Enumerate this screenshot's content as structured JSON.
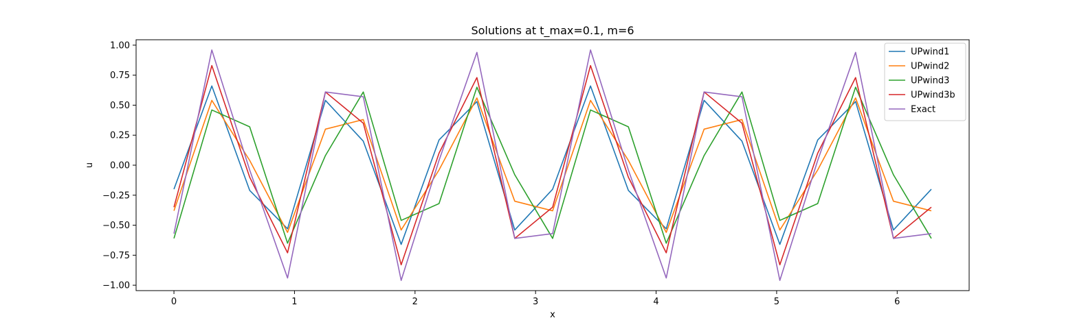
{
  "chart_data": {
    "type": "line",
    "title": "Solutions at t_max=0.1, m=6",
    "xlabel": "x",
    "ylabel": "u",
    "xlim": [
      -0.314,
      6.597
    ],
    "ylim": [
      -1.045,
      1.045
    ],
    "xticks": [
      0,
      1,
      2,
      3,
      4,
      5,
      6
    ],
    "xtick_labels": [
      "0",
      "1",
      "2",
      "3",
      "4",
      "5",
      "6"
    ],
    "yticks": [
      1.0,
      0.75,
      0.5,
      0.25,
      0.0,
      -0.25,
      -0.5,
      -0.75,
      -1.0
    ],
    "ytick_labels": [
      "1.00",
      "0.75",
      "0.50",
      "0.25",
      "0.00",
      "−0.25",
      "−0.50",
      "−0.75",
      "−1.00"
    ],
    "grid": false,
    "legend_position": "top-right",
    "x": [
      0,
      0.3142,
      0.6283,
      0.9425,
      1.2566,
      1.5708,
      1.885,
      2.1991,
      2.5133,
      2.8274,
      3.1416,
      3.4558,
      3.7699,
      4.0841,
      4.3982,
      4.7124,
      5.0265,
      5.3407,
      5.6549,
      5.969,
      6.2832
    ],
    "series": [
      {
        "name": "UPwind1",
        "color": "#1f77b4",
        "values": [
          -0.2,
          0.66,
          -0.21,
          -0.53,
          0.54,
          0.2,
          -0.66,
          0.21,
          0.53,
          -0.54,
          -0.2,
          0.66,
          -0.21,
          -0.53,
          0.54,
          0.2,
          -0.66,
          0.21,
          0.53,
          -0.54,
          -0.2
        ]
      },
      {
        "name": "UPwind2",
        "color": "#ff7f0e",
        "values": [
          -0.38,
          0.54,
          0.04,
          -0.56,
          0.3,
          0.38,
          -0.54,
          -0.04,
          0.56,
          -0.3,
          -0.38,
          0.54,
          0.04,
          -0.56,
          0.3,
          0.38,
          -0.54,
          -0.04,
          0.56,
          -0.3,
          -0.38
        ]
      },
      {
        "name": "UPwind3",
        "color": "#2ca02c",
        "values": [
          -0.61,
          0.46,
          0.32,
          -0.65,
          0.08,
          0.61,
          -0.46,
          -0.32,
          0.65,
          -0.08,
          -0.61,
          0.46,
          0.32,
          -0.65,
          0.08,
          0.61,
          -0.46,
          -0.32,
          0.65,
          -0.08,
          -0.61
        ]
      },
      {
        "name": "UPwind3b",
        "color": "#d62728",
        "values": [
          -0.35,
          0.83,
          -0.1,
          -0.73,
          0.61,
          0.35,
          -0.83,
          0.1,
          0.73,
          -0.61,
          -0.35,
          0.83,
          -0.1,
          -0.73,
          0.61,
          0.35,
          -0.83,
          0.1,
          0.73,
          -0.61,
          -0.35
        ]
      },
      {
        "name": "Exact",
        "color": "#9467bd",
        "values": [
          -0.57,
          0.96,
          -0.04,
          -0.94,
          0.61,
          0.57,
          -0.96,
          0.04,
          0.94,
          -0.61,
          -0.57,
          0.96,
          -0.04,
          -0.94,
          0.61,
          0.57,
          -0.96,
          0.04,
          0.94,
          -0.61,
          -0.57
        ]
      }
    ]
  }
}
